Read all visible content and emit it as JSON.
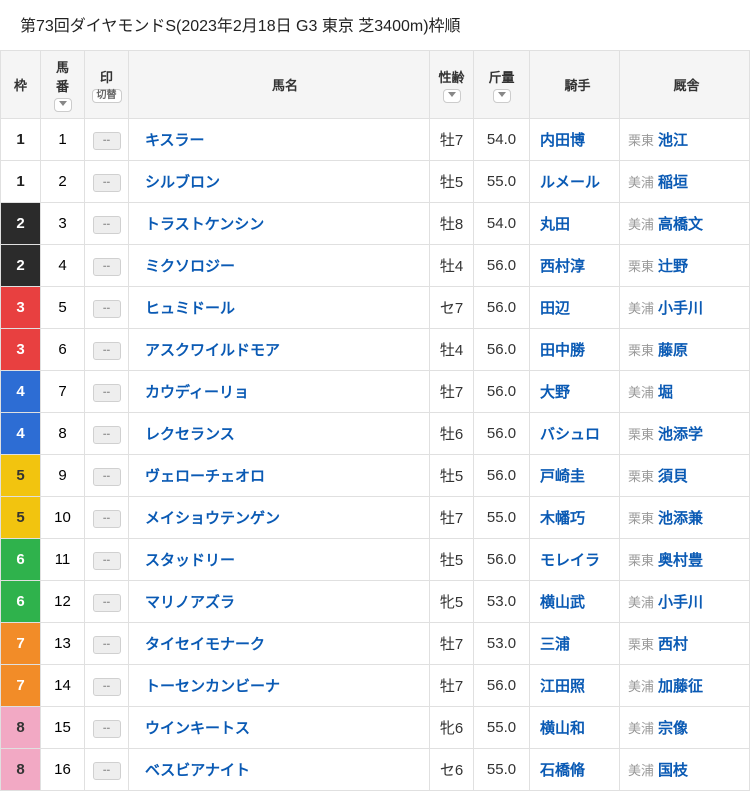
{
  "title": "第73回ダイヤモンドS(2023年2月18日 G3 東京 芝3400m)枠順",
  "headers": {
    "waku": "枠",
    "umaban": "馬\n番",
    "in": "印",
    "in_sub": "切替",
    "name": "馬名",
    "age": "性齢",
    "weight": "斤量",
    "jockey": "騎手",
    "stable": "厩舎"
  },
  "waku_colors": {
    "1": {
      "bg": "#ffffff",
      "fg": "#222222"
    },
    "2": {
      "bg": "#2b2b2b",
      "fg": "#ffffff"
    },
    "3": {
      "bg": "#e84040",
      "fg": "#ffffff"
    },
    "4": {
      "bg": "#2d6dd4",
      "fg": "#ffffff"
    },
    "5": {
      "bg": "#f2c40f",
      "fg": "#333333"
    },
    "6": {
      "bg": "#2fb24c",
      "fg": "#ffffff"
    },
    "7": {
      "bg": "#f28c28",
      "fg": "#ffffff"
    },
    "8": {
      "bg": "#f2a9c4",
      "fg": "#333333"
    }
  },
  "rows": [
    {
      "waku": "1",
      "num": "1",
      "name": "キスラー",
      "age": "牡7",
      "weight": "54.0",
      "jockey": "内田博",
      "loc": "栗東",
      "stable": "池江"
    },
    {
      "waku": "1",
      "num": "2",
      "name": "シルブロン",
      "age": "牡5",
      "weight": "55.0",
      "jockey": "ルメール",
      "loc": "美浦",
      "stable": "稲垣"
    },
    {
      "waku": "2",
      "num": "3",
      "name": "トラストケンシン",
      "age": "牡8",
      "weight": "54.0",
      "jockey": "丸田",
      "loc": "美浦",
      "stable": "高橋文"
    },
    {
      "waku": "2",
      "num": "4",
      "name": "ミクソロジー",
      "age": "牡4",
      "weight": "56.0",
      "jockey": "西村淳",
      "loc": "栗東",
      "stable": "辻野"
    },
    {
      "waku": "3",
      "num": "5",
      "name": "ヒュミドール",
      "age": "セ7",
      "weight": "56.0",
      "jockey": "田辺",
      "loc": "美浦",
      "stable": "小手川"
    },
    {
      "waku": "3",
      "num": "6",
      "name": "アスクワイルドモア",
      "age": "牡4",
      "weight": "56.0",
      "jockey": "田中勝",
      "loc": "栗東",
      "stable": "藤原"
    },
    {
      "waku": "4",
      "num": "7",
      "name": "カウディーリョ",
      "age": "牡7",
      "weight": "56.0",
      "jockey": "大野",
      "loc": "美浦",
      "stable": "堀"
    },
    {
      "waku": "4",
      "num": "8",
      "name": "レクセランス",
      "age": "牡6",
      "weight": "56.0",
      "jockey": "バシュロ",
      "loc": "栗東",
      "stable": "池添学"
    },
    {
      "waku": "5",
      "num": "9",
      "name": "ヴェローチェオロ",
      "age": "牡5",
      "weight": "56.0",
      "jockey": "戸崎圭",
      "loc": "栗東",
      "stable": "須貝"
    },
    {
      "waku": "5",
      "num": "10",
      "name": "メイショウテンゲン",
      "age": "牡7",
      "weight": "55.0",
      "jockey": "木幡巧",
      "loc": "栗東",
      "stable": "池添兼"
    },
    {
      "waku": "6",
      "num": "11",
      "name": "スタッドリー",
      "age": "牡5",
      "weight": "56.0",
      "jockey": "モレイラ",
      "loc": "栗東",
      "stable": "奥村豊"
    },
    {
      "waku": "6",
      "num": "12",
      "name": "マリノアズラ",
      "age": "牝5",
      "weight": "53.0",
      "jockey": "横山武",
      "loc": "美浦",
      "stable": "小手川"
    },
    {
      "waku": "7",
      "num": "13",
      "name": "タイセイモナーク",
      "age": "牡7",
      "weight": "53.0",
      "jockey": "三浦",
      "loc": "栗東",
      "stable": "西村"
    },
    {
      "waku": "7",
      "num": "14",
      "name": "トーセンカンビーナ",
      "age": "牡7",
      "weight": "56.0",
      "jockey": "江田照",
      "loc": "美浦",
      "stable": "加藤征"
    },
    {
      "waku": "8",
      "num": "15",
      "name": "ウインキートス",
      "age": "牝6",
      "weight": "55.0",
      "jockey": "横山和",
      "loc": "美浦",
      "stable": "宗像"
    },
    {
      "waku": "8",
      "num": "16",
      "name": "ベスビアナイト",
      "age": "セ6",
      "weight": "55.0",
      "jockey": "石橋脩",
      "loc": "美浦",
      "stable": "国枝"
    }
  ]
}
